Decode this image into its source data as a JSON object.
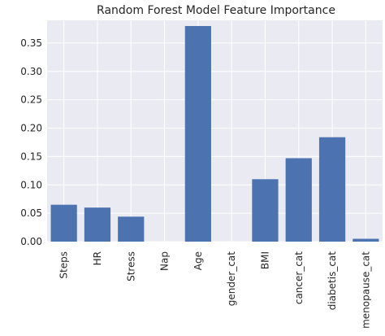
{
  "chart_data": {
    "type": "bar",
    "title": "Random Forest Model Feature Importance",
    "xlabel": "",
    "ylabel": "",
    "categories": [
      "Steps",
      "HR",
      "Stress",
      "Nap",
      "Age",
      "gender_cat",
      "BMI",
      "cancer_cat",
      "diabetis_cat",
      "menopause_cat"
    ],
    "values": [
      0.065,
      0.06,
      0.044,
      0.0,
      0.38,
      0.0,
      0.11,
      0.147,
      0.184,
      0.005
    ],
    "ylim": [
      0,
      0.39
    ],
    "yticks": [
      0.0,
      0.05,
      0.1,
      0.15,
      0.2,
      0.25,
      0.3,
      0.35
    ],
    "ytick_labels": [
      "0.00",
      "0.05",
      "0.10",
      "0.15",
      "0.20",
      "0.25",
      "0.30",
      "0.35"
    ],
    "grid": true,
    "legend": "none",
    "colors": {
      "bar": "#4c72b0",
      "plot_background": "#eaeaf2",
      "grid": "#ffffff",
      "text": "#262626"
    }
  }
}
